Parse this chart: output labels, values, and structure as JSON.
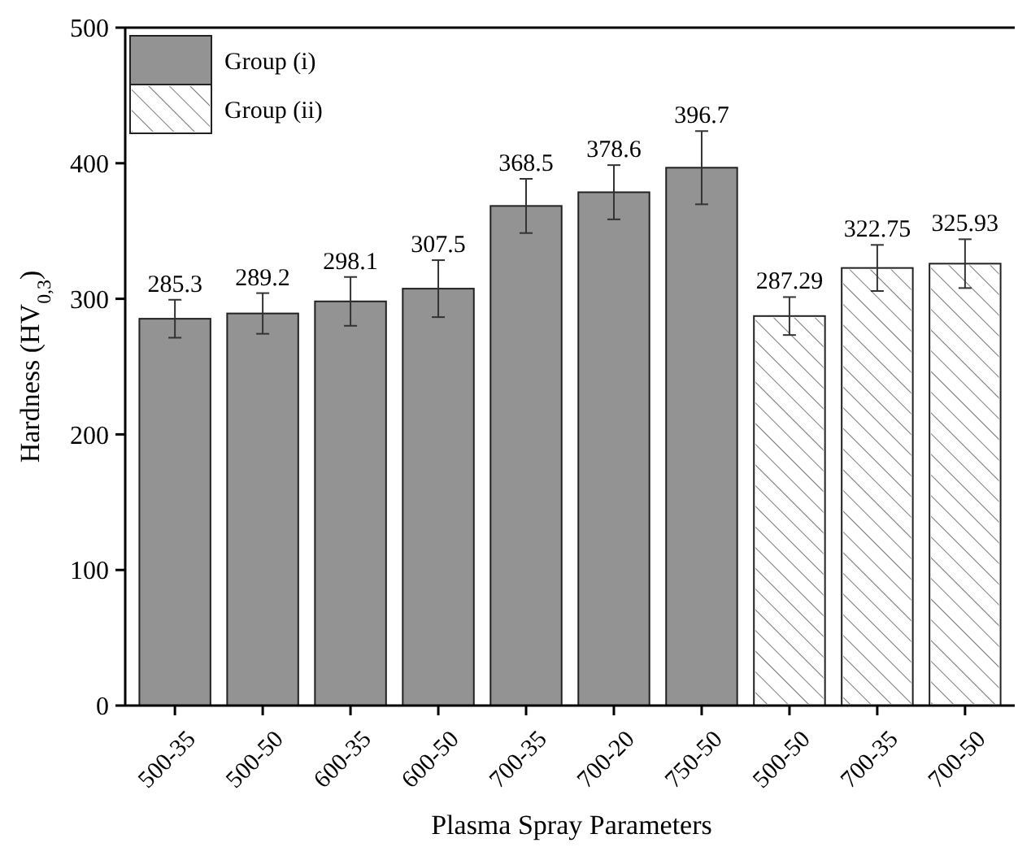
{
  "chart_data": {
    "type": "bar",
    "xlabel": "Plasma Spray Parameters",
    "ylabel": "Hardness (HV$_{0,3}$)",
    "categories": [
      "500-35",
      "500-50",
      "600-35",
      "600-50",
      "700-35",
      "700-20",
      "750-50",
      "500-50",
      "700-35",
      "700-50"
    ],
    "series": [
      {
        "name": "Group (i)",
        "color": "#939393",
        "values": [
          285.3,
          289.2,
          298.1,
          307.5,
          368.5,
          378.6,
          396.7,
          null,
          null,
          null
        ],
        "errors": [
          14,
          15,
          18,
          21,
          20,
          20,
          27,
          null,
          null,
          null
        ]
      },
      {
        "name": "Group (ii)",
        "color": "#ffffff",
        "values": [
          null,
          null,
          null,
          null,
          null,
          null,
          null,
          287.29,
          322.75,
          325.93
        ],
        "errors": [
          null,
          null,
          null,
          null,
          null,
          null,
          null,
          14,
          17,
          18
        ]
      }
    ],
    "ylim": [
      0,
      500
    ],
    "yticks": [
      0,
      100,
      200,
      300,
      400,
      500
    ],
    "data_labels": true,
    "legend": "top left",
    "grid": false
  }
}
